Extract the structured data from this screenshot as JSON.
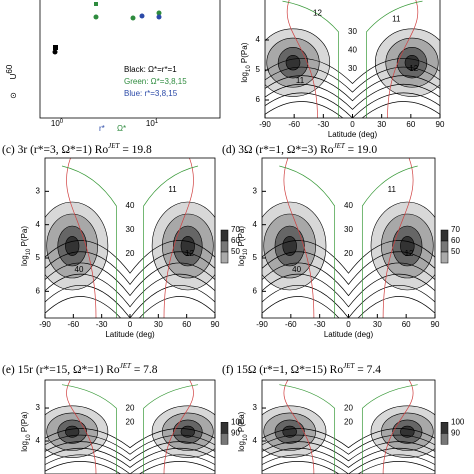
{
  "panel_a": {
    "y_symbol": "⊙",
    "y_label": "U",
    "y_label_sup": "60",
    "x_ticks": [
      {
        "base": "10",
        "exp": "0"
      },
      {
        "base": "10",
        "exp": "1"
      }
    ],
    "x_label_r": "r*",
    "x_label_omega": "Ω*",
    "legend": [
      "Black: Ω*=r*=1",
      "Green: Ω*=3,8,15",
      "Blue: r*=3,8,15"
    ]
  },
  "panels": [
    {
      "id": "b",
      "ylim": [
        2.5,
        6.6
      ],
      "yticks": [
        4,
        5,
        6
      ],
      "xlim": [
        -90,
        90
      ],
      "xticks": [
        -90,
        -60,
        -30,
        0,
        30,
        60,
        90
      ],
      "y_label": "log",
      "y_label_sub": "10",
      "y_label_rest": " P(Pa)",
      "x_label": "Latitude (deg)",
      "contour_labels": [
        "30",
        "40",
        "30",
        "11",
        "11",
        "12",
        "12"
      ],
      "colorbar": []
    },
    {
      "id": "c",
      "caption": {
        "text": "(c) 3r (r*=3, Ω*=1) Ro",
        "sup": "JET",
        "rest": " = 19.8"
      },
      "ylim": [
        2,
        6.8
      ],
      "yticks": [
        3,
        4,
        5,
        6
      ],
      "xlim": [
        -90,
        90
      ],
      "xticks": [
        -90,
        -60,
        -30,
        0,
        30,
        60,
        90
      ],
      "y_label": "log",
      "y_label_sub": "10",
      "y_label_rest": " P(Pa)",
      "x_label": "Latitude (deg)",
      "contour_labels": [
        "40",
        "30",
        "20",
        "40",
        "11",
        "12"
      ],
      "colorbar": [
        "70",
        "60",
        "50"
      ]
    },
    {
      "id": "d",
      "caption": {
        "text": "(d) 3Ω (r*=1, Ω*=3) Ro",
        "sup": "JET",
        "rest": " = 19.0"
      },
      "ylim": [
        2,
        6.8
      ],
      "yticks": [
        3,
        4,
        5,
        6
      ],
      "xlim": [
        -90,
        90
      ],
      "xticks": [
        -90,
        -60,
        -30,
        0,
        30,
        60,
        90
      ],
      "y_label": "log",
      "y_label_sub": "10",
      "y_label_rest": " P(Pa)",
      "x_label": "Latitude (deg)",
      "contour_labels": [
        "40",
        "30",
        "20",
        "40",
        "11",
        "12"
      ],
      "colorbar": [
        "70",
        "60",
        "50"
      ]
    },
    {
      "id": "e",
      "caption": {
        "text": "(e) 15r (r*=15, Ω*=1) Ro",
        "sup": "JET",
        "rest": " = 7.8"
      },
      "ylim": [
        2.15,
        5
      ],
      "yticks": [
        3,
        4
      ],
      "xlim": [
        -90,
        90
      ],
      "xticks": [],
      "y_label": "log",
      "y_label_sub": "10",
      "y_label_rest": " P(Pa)",
      "x_label": "",
      "contour_labels": [
        "20",
        "20"
      ],
      "colorbar": [
        "100",
        "90"
      ]
    },
    {
      "id": "f",
      "caption": {
        "text": "(f) 15Ω (r*=1, Ω*=15) Ro",
        "sup": "JET",
        "rest": " = 7.4"
      },
      "ylim": [
        2.15,
        5
      ],
      "yticks": [
        3,
        4
      ],
      "xlim": [
        -90,
        90
      ],
      "xticks": [],
      "y_label": "log",
      "y_label_sub": "10",
      "y_label_rest": " P(Pa)",
      "x_label": "",
      "contour_labels": [
        "20",
        "20"
      ],
      "colorbar": [
        "100",
        "90"
      ]
    }
  ]
}
